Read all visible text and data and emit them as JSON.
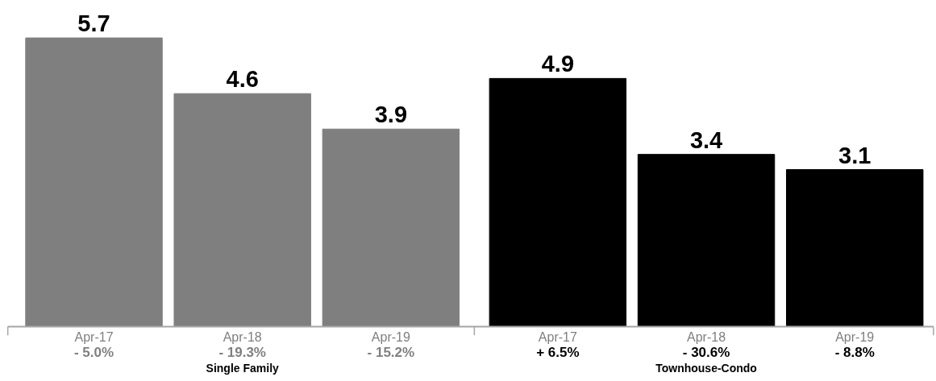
{
  "chart_data": {
    "type": "bar",
    "categories": [
      "Apr-17",
      "Apr-18",
      "Apr-19",
      "Apr-17",
      "Apr-18",
      "Apr-19"
    ],
    "values": [
      5.7,
      4.6,
      3.9,
      4.9,
      3.4,
      3.1
    ],
    "colors": [
      "#7f7f7f",
      "#7f7f7f",
      "#7f7f7f",
      "#000000",
      "#000000",
      "#000000"
    ],
    "data_labels": true,
    "annotations": [
      "- 5.0%",
      "- 19.3%",
      "- 15.2%",
      "+ 6.5%",
      "- 30.6%",
      "- 8.8%",
      "Single Family",
      "Townhouse-Condo"
    ]
  }
}
